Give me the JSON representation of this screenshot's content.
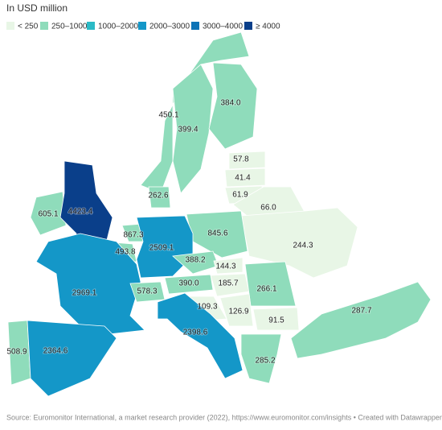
{
  "subtitle": "In USD million",
  "legend": [
    {
      "label": "< 250",
      "color": "#e8f6e6"
    },
    {
      "label": "250–1000",
      "color": "#8fdcbb"
    },
    {
      "label": "1000–2000",
      "color": "#2bbac6"
    },
    {
      "label": "2000–3000",
      "color": "#1497c8"
    },
    {
      "label": "3000–4000",
      "color": "#0c73b6"
    },
    {
      "label": "≥ 4000",
      "color": "#0a3f8a"
    }
  ],
  "regions": [
    {
      "label": "450.1",
      "color": "#8fdcbb"
    },
    {
      "label": "399.4",
      "color": "#8fdcbb"
    },
    {
      "label": "384.0",
      "color": "#8fdcbb"
    },
    {
      "label": "57.8",
      "color": "#e8f6e6"
    },
    {
      "label": "41.4",
      "color": "#e8f6e6"
    },
    {
      "label": "61.9",
      "color": "#e8f6e6"
    },
    {
      "label": "66.0",
      "color": "#e8f6e6"
    },
    {
      "label": "244.3",
      "color": "#e8f6e6"
    },
    {
      "label": "845.6",
      "color": "#8fdcbb"
    },
    {
      "label": "262.6",
      "color": "#8fdcbb"
    },
    {
      "label": "605.1",
      "color": "#8fdcbb"
    },
    {
      "label": "4423.4",
      "color": "#0a3f8a"
    },
    {
      "label": "867.3",
      "color": "#8fdcbb"
    },
    {
      "label": "493.8",
      "color": "#8fdcbb"
    },
    {
      "label": "2509.1",
      "color": "#1497c8"
    },
    {
      "label": "2969.1",
      "color": "#1497c8"
    },
    {
      "label": "578.3",
      "color": "#8fdcbb"
    },
    {
      "label": "390.0",
      "color": "#8fdcbb"
    },
    {
      "label": "388.2",
      "color": "#8fdcbb"
    },
    {
      "label": "144.3",
      "color": "#e8f6e6"
    },
    {
      "label": "185.7",
      "color": "#e8f6e6"
    },
    {
      "label": "266.1",
      "color": "#8fdcbb"
    },
    {
      "label": "109.3",
      "color": "#e8f6e6"
    },
    {
      "label": "126.9",
      "color": "#e8f6e6"
    },
    {
      "label": "91.5",
      "color": "#e8f6e6"
    },
    {
      "label": "287.7",
      "color": "#8fdcbb"
    },
    {
      "label": "285.2",
      "color": "#8fdcbb"
    },
    {
      "label": "508.9",
      "color": "#8fdcbb"
    },
    {
      "label": "2364.6",
      "color": "#1497c8"
    },
    {
      "label": "2398.6",
      "color": "#1497c8"
    }
  ],
  "source": "Source: Euromonitor International, a market research provider (2022), https://www.euromonitor.com/insights • Created with Datawrapper"
}
